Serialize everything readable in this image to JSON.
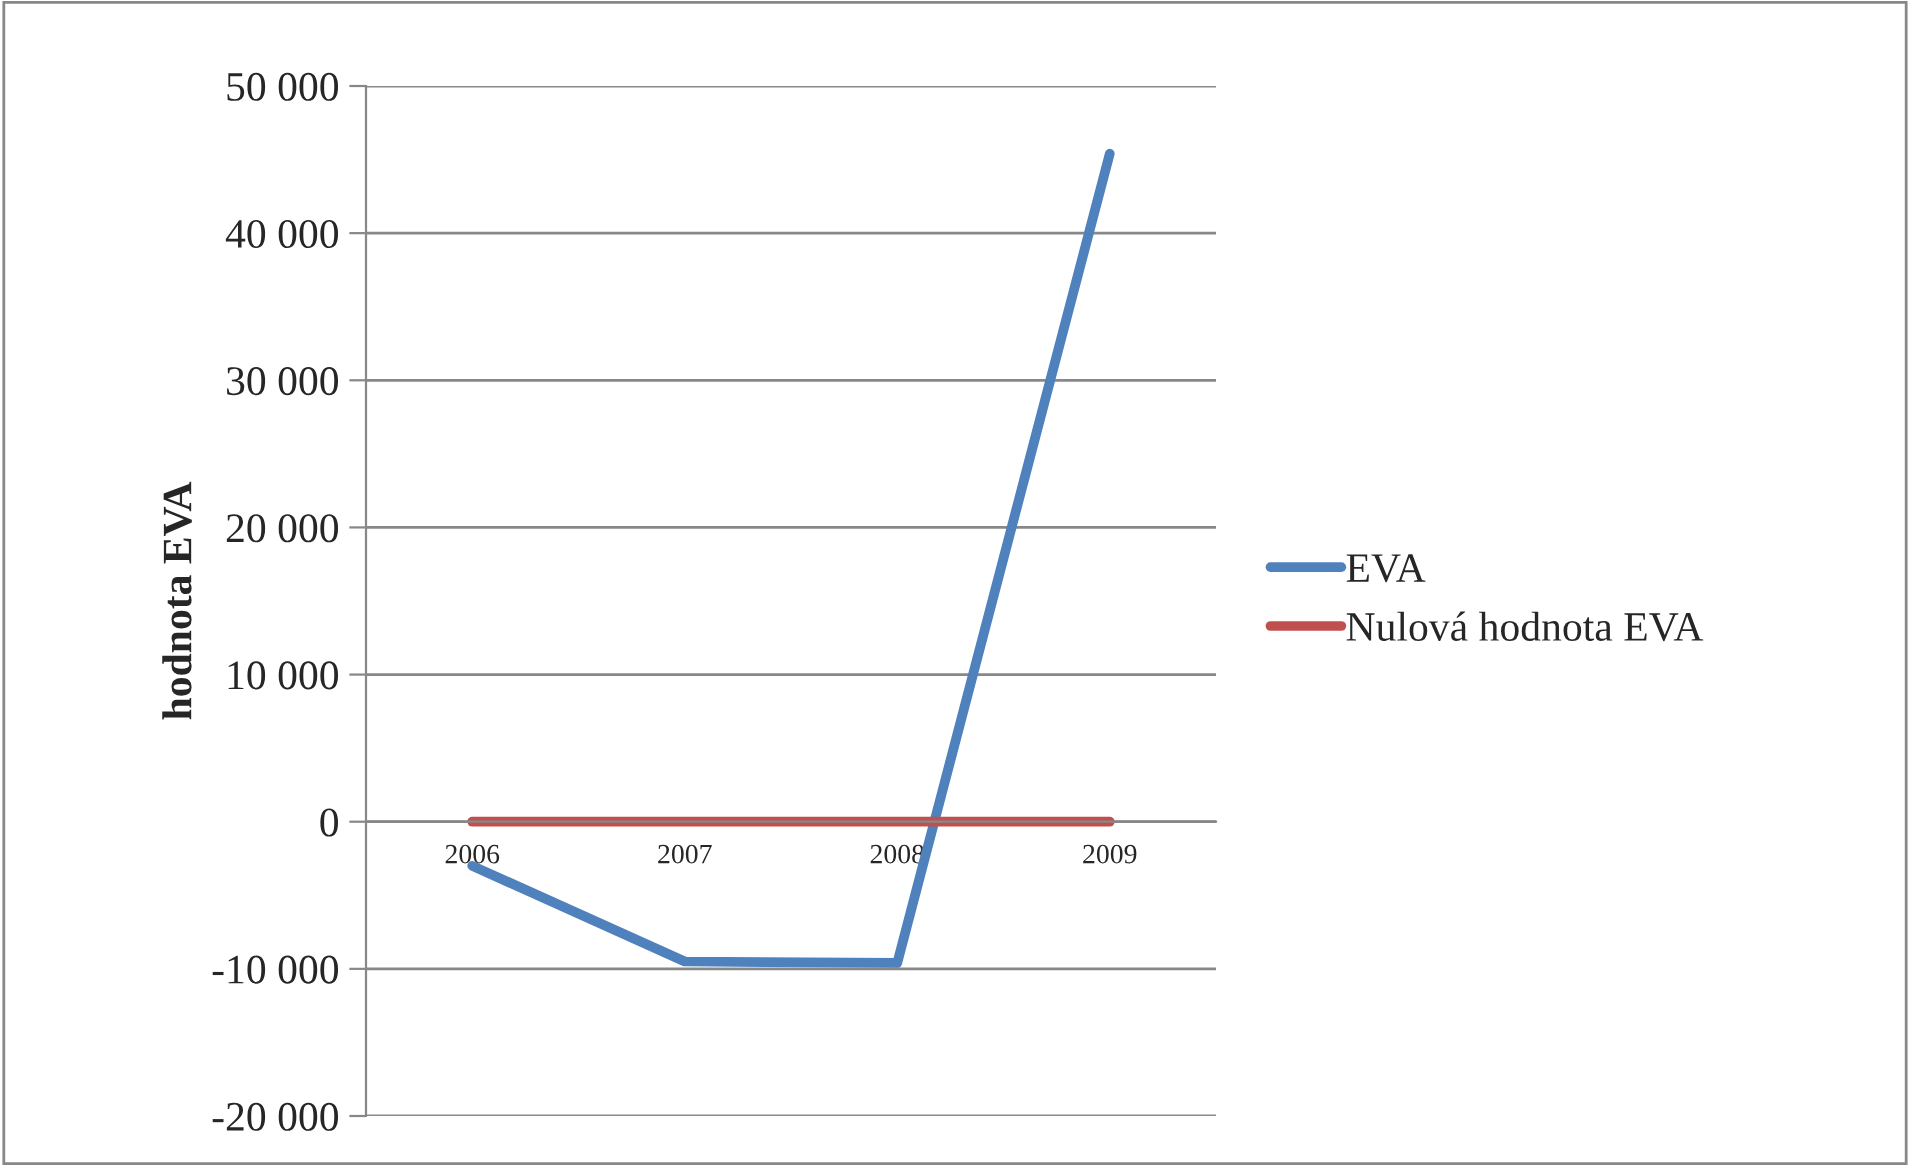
{
  "chart_data": {
    "type": "line",
    "ylabel": "hodnota EVA",
    "categories": [
      "2006",
      "2007",
      "2008",
      "2009"
    ],
    "series": [
      {
        "name": "EVA",
        "color": "#4f81bd",
        "values": [
          -3000,
          -9500,
          -9600,
          45400
        ]
      },
      {
        "name": "Nulová hodnota EVA",
        "color": "#c0504d",
        "values": [
          0,
          0,
          0,
          0
        ]
      }
    ],
    "ylim": [
      -20000,
      50000
    ],
    "yticks": [
      {
        "value": -20000,
        "label": "-20 000"
      },
      {
        "value": -10000,
        "label": "-10 000"
      },
      {
        "value": 0,
        "label": "0"
      },
      {
        "value": 10000,
        "label": "10 000"
      },
      {
        "value": 20000,
        "label": "20 000"
      },
      {
        "value": 30000,
        "label": "30 000"
      },
      {
        "value": 40000,
        "label": "40 000"
      },
      {
        "value": 50000,
        "label": "50 000"
      }
    ],
    "grid": "y",
    "legend": "right",
    "marker": "none",
    "line_style": "solid"
  }
}
